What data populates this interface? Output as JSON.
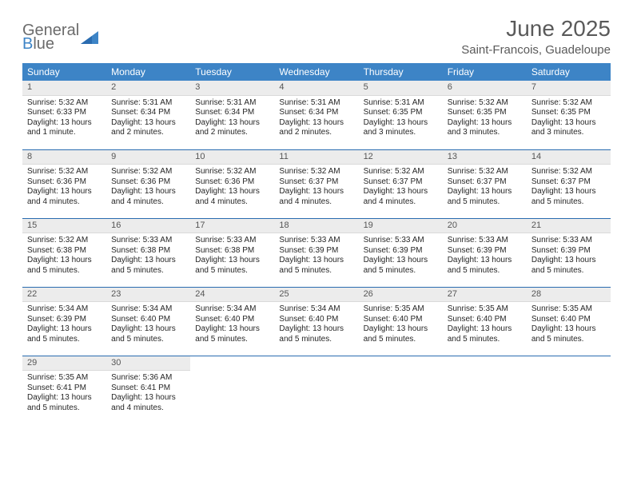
{
  "logo": {
    "general": "General",
    "b": "B",
    "lue": "lue",
    "triangle_color": "#3d84c6"
  },
  "header": {
    "title": "June 2025",
    "location": "Saint-Francois, Guadeloupe"
  },
  "styling": {
    "header_bg": "#3d84c6",
    "header_text_color": "#ffffff",
    "daynum_bg": "#ececec",
    "page_bg": "#ffffff",
    "body_text_color": "#262626",
    "title_color": "#5a5a5a",
    "row_divider_color": "#2a6cb0",
    "font": "Arial",
    "title_fontsize": 28,
    "location_fontsize": 15,
    "weekday_fontsize": 12,
    "daynum_fontsize": 11,
    "body_fontsize": 10
  },
  "weekdays": [
    "Sunday",
    "Monday",
    "Tuesday",
    "Wednesday",
    "Thursday",
    "Friday",
    "Saturday"
  ],
  "days": [
    {
      "num": "1",
      "sunrise": "Sunrise: 5:32 AM",
      "sunset": "Sunset: 6:33 PM",
      "daylight": "Daylight: 13 hours and 1 minute."
    },
    {
      "num": "2",
      "sunrise": "Sunrise: 5:31 AM",
      "sunset": "Sunset: 6:34 PM",
      "daylight": "Daylight: 13 hours and 2 minutes."
    },
    {
      "num": "3",
      "sunrise": "Sunrise: 5:31 AM",
      "sunset": "Sunset: 6:34 PM",
      "daylight": "Daylight: 13 hours and 2 minutes."
    },
    {
      "num": "4",
      "sunrise": "Sunrise: 5:31 AM",
      "sunset": "Sunset: 6:34 PM",
      "daylight": "Daylight: 13 hours and 2 minutes."
    },
    {
      "num": "5",
      "sunrise": "Sunrise: 5:31 AM",
      "sunset": "Sunset: 6:35 PM",
      "daylight": "Daylight: 13 hours and 3 minutes."
    },
    {
      "num": "6",
      "sunrise": "Sunrise: 5:32 AM",
      "sunset": "Sunset: 6:35 PM",
      "daylight": "Daylight: 13 hours and 3 minutes."
    },
    {
      "num": "7",
      "sunrise": "Sunrise: 5:32 AM",
      "sunset": "Sunset: 6:35 PM",
      "daylight": "Daylight: 13 hours and 3 minutes."
    },
    {
      "num": "8",
      "sunrise": "Sunrise: 5:32 AM",
      "sunset": "Sunset: 6:36 PM",
      "daylight": "Daylight: 13 hours and 4 minutes."
    },
    {
      "num": "9",
      "sunrise": "Sunrise: 5:32 AM",
      "sunset": "Sunset: 6:36 PM",
      "daylight": "Daylight: 13 hours and 4 minutes."
    },
    {
      "num": "10",
      "sunrise": "Sunrise: 5:32 AM",
      "sunset": "Sunset: 6:36 PM",
      "daylight": "Daylight: 13 hours and 4 minutes."
    },
    {
      "num": "11",
      "sunrise": "Sunrise: 5:32 AM",
      "sunset": "Sunset: 6:37 PM",
      "daylight": "Daylight: 13 hours and 4 minutes."
    },
    {
      "num": "12",
      "sunrise": "Sunrise: 5:32 AM",
      "sunset": "Sunset: 6:37 PM",
      "daylight": "Daylight: 13 hours and 4 minutes."
    },
    {
      "num": "13",
      "sunrise": "Sunrise: 5:32 AM",
      "sunset": "Sunset: 6:37 PM",
      "daylight": "Daylight: 13 hours and 5 minutes."
    },
    {
      "num": "14",
      "sunrise": "Sunrise: 5:32 AM",
      "sunset": "Sunset: 6:37 PM",
      "daylight": "Daylight: 13 hours and 5 minutes."
    },
    {
      "num": "15",
      "sunrise": "Sunrise: 5:32 AM",
      "sunset": "Sunset: 6:38 PM",
      "daylight": "Daylight: 13 hours and 5 minutes."
    },
    {
      "num": "16",
      "sunrise": "Sunrise: 5:33 AM",
      "sunset": "Sunset: 6:38 PM",
      "daylight": "Daylight: 13 hours and 5 minutes."
    },
    {
      "num": "17",
      "sunrise": "Sunrise: 5:33 AM",
      "sunset": "Sunset: 6:38 PM",
      "daylight": "Daylight: 13 hours and 5 minutes."
    },
    {
      "num": "18",
      "sunrise": "Sunrise: 5:33 AM",
      "sunset": "Sunset: 6:39 PM",
      "daylight": "Daylight: 13 hours and 5 minutes."
    },
    {
      "num": "19",
      "sunrise": "Sunrise: 5:33 AM",
      "sunset": "Sunset: 6:39 PM",
      "daylight": "Daylight: 13 hours and 5 minutes."
    },
    {
      "num": "20",
      "sunrise": "Sunrise: 5:33 AM",
      "sunset": "Sunset: 6:39 PM",
      "daylight": "Daylight: 13 hours and 5 minutes."
    },
    {
      "num": "21",
      "sunrise": "Sunrise: 5:33 AM",
      "sunset": "Sunset: 6:39 PM",
      "daylight": "Daylight: 13 hours and 5 minutes."
    },
    {
      "num": "22",
      "sunrise": "Sunrise: 5:34 AM",
      "sunset": "Sunset: 6:39 PM",
      "daylight": "Daylight: 13 hours and 5 minutes."
    },
    {
      "num": "23",
      "sunrise": "Sunrise: 5:34 AM",
      "sunset": "Sunset: 6:40 PM",
      "daylight": "Daylight: 13 hours and 5 minutes."
    },
    {
      "num": "24",
      "sunrise": "Sunrise: 5:34 AM",
      "sunset": "Sunset: 6:40 PM",
      "daylight": "Daylight: 13 hours and 5 minutes."
    },
    {
      "num": "25",
      "sunrise": "Sunrise: 5:34 AM",
      "sunset": "Sunset: 6:40 PM",
      "daylight": "Daylight: 13 hours and 5 minutes."
    },
    {
      "num": "26",
      "sunrise": "Sunrise: 5:35 AM",
      "sunset": "Sunset: 6:40 PM",
      "daylight": "Daylight: 13 hours and 5 minutes."
    },
    {
      "num": "27",
      "sunrise": "Sunrise: 5:35 AM",
      "sunset": "Sunset: 6:40 PM",
      "daylight": "Daylight: 13 hours and 5 minutes."
    },
    {
      "num": "28",
      "sunrise": "Sunrise: 5:35 AM",
      "sunset": "Sunset: 6:40 PM",
      "daylight": "Daylight: 13 hours and 5 minutes."
    },
    {
      "num": "29",
      "sunrise": "Sunrise: 5:35 AM",
      "sunset": "Sunset: 6:41 PM",
      "daylight": "Daylight: 13 hours and 5 minutes."
    },
    {
      "num": "30",
      "sunrise": "Sunrise: 5:36 AM",
      "sunset": "Sunset: 6:41 PM",
      "daylight": "Daylight: 13 hours and 4 minutes."
    }
  ],
  "grid": {
    "start_weekday": 0,
    "rows": 5,
    "cols": 7
  }
}
